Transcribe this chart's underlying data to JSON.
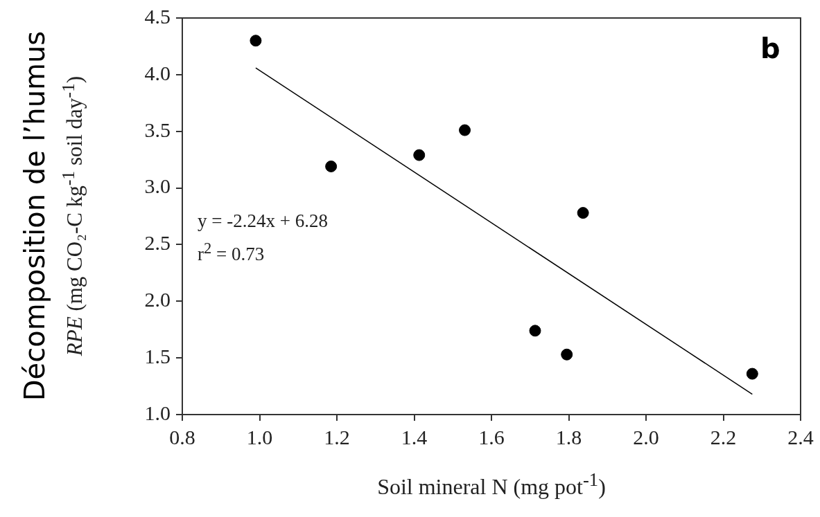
{
  "chart_data": {
    "type": "scatter",
    "xlabel": "Soil mineral N (mg pot$^{-1}$)",
    "ylabel": "RPE (mg CO₂-C kg$^{-1}$ soil day$^{-1}$)",
    "annotations": [
      "Décomposition de l’humus",
      "y = -2.24x + 6.28",
      "r$^{2}$ = 0.73",
      "b"
    ],
    "xlim": [
      0.8,
      2.4
    ],
    "xticks": [
      {
        "value": 0.8,
        "label": "0.8"
      },
      {
        "value": 1,
        "label": "1.0"
      },
      {
        "value": 1.2,
        "label": "1.2"
      },
      {
        "value": 1.4,
        "label": "1.4"
      },
      {
        "value": 1.6,
        "label": "1.6"
      },
      {
        "value": 1.8,
        "label": "1.8"
      },
      {
        "value": 2,
        "label": "2.0"
      },
      {
        "value": 2.2,
        "label": "2.2"
      },
      {
        "value": 2.4,
        "label": "2.4"
      }
    ],
    "ylim": [
      1,
      4.5
    ],
    "yticks": [
      {
        "value": 1,
        "label": "1.0"
      },
      {
        "value": 1.5,
        "label": "1.5"
      },
      {
        "value": 2,
        "label": "2.0"
      },
      {
        "value": 2.5,
        "label": "2.5"
      },
      {
        "value": 3,
        "label": "3.0"
      },
      {
        "value": 3.5,
        "label": "3.5"
      },
      {
        "value": 4,
        "label": "4.0"
      },
      {
        "value": 4.5,
        "label": "4.5"
      }
    ],
    "grid": false,
    "legend": false,
    "marker": "circle",
    "series": [
      {
        "color": "#000000",
        "x": [
          0.99,
          1.185,
          1.413,
          1.531,
          1.837,
          1.713,
          1.795,
          2.275
        ],
        "values": [
          4.3,
          3.19,
          3.29,
          3.51,
          2.78,
          1.74,
          1.53,
          1.36
        ]
      },
      {
        "type": "line",
        "color": "#000000",
        "line_style": "solid",
        "marker": "none",
        "x": [
          0.99,
          2.275
        ],
        "values": [
          4.06,
          1.18
        ]
      }
    ]
  }
}
